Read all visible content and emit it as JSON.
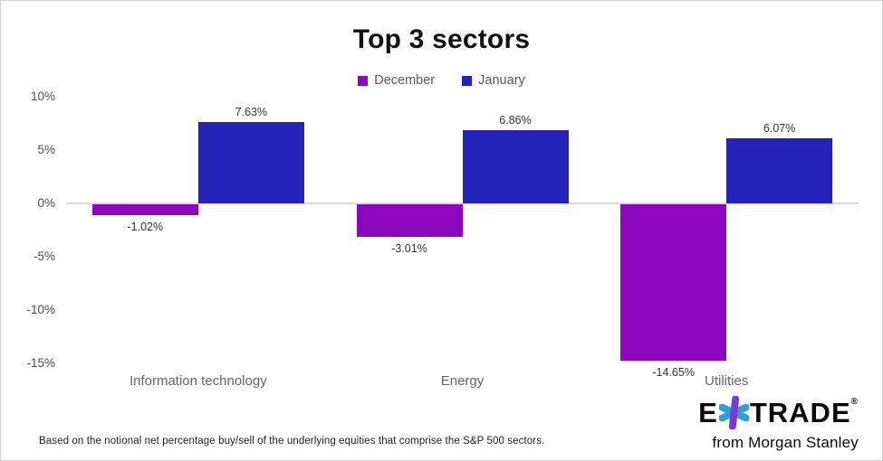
{
  "chart_data": {
    "type": "bar",
    "title": "Top 3 sectors",
    "categories": [
      "Information technology",
      "Energy",
      "Utilities"
    ],
    "series": [
      {
        "name": "December",
        "color": "#8C06BD",
        "values": [
          -1.02,
          -3.01,
          -14.65
        ],
        "data_labels": [
          "-1.02%",
          "-3.01%",
          "-14.65%"
        ]
      },
      {
        "name": "January",
        "color": "#2522BA",
        "values": [
          7.63,
          6.86,
          6.07
        ],
        "data_labels": [
          "7.63%",
          "6.86%",
          "6.07%"
        ]
      }
    ],
    "y_axis": {
      "min": -15,
      "max": 10,
      "ticks": [
        10,
        5,
        0,
        -5,
        -10,
        -15
      ],
      "tick_labels": [
        "10%",
        "5%",
        "0%",
        "-5%",
        "-10%",
        "-15%"
      ]
    },
    "grid": false,
    "legend_position": "top-center",
    "zero_line_color": "#d9d9d9"
  },
  "footnote": "Based on the notional net percentage buy/sell of the underlying equities that comprise the S&P 500 sectors.",
  "logo": {
    "brand_prefix": "E",
    "brand_suffix": "TRADE",
    "registered_mark": "®",
    "tagline": "from Morgan Stanley",
    "star_purple": "#7B3BCF",
    "star_blue": "#2E9FD9"
  }
}
